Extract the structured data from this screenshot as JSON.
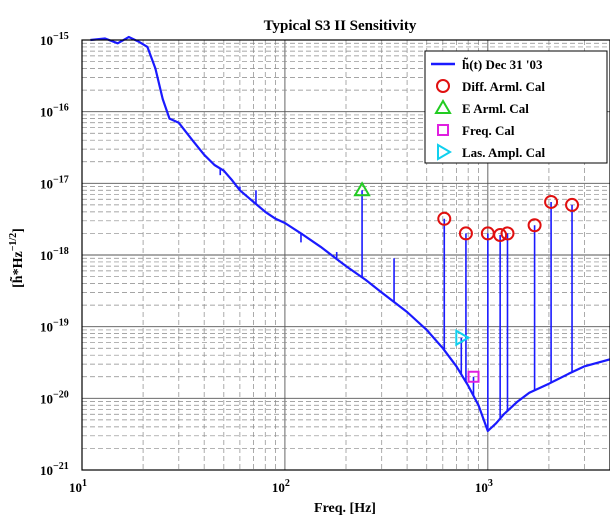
{
  "chart_data": {
    "type": "line",
    "title": "Typical S3 II Sensitivity",
    "xlabel": "Freq. [Hz]",
    "ylabel": "[h̃*Hz^-1/2]",
    "ylabel_parts": {
      "base": "[h̃*Hz",
      "exp": "−1/2",
      "close": "]"
    },
    "x_scale": "log",
    "y_scale": "log",
    "xlim": [
      10,
      4000
    ],
    "ylim": [
      1e-21,
      1e-15
    ],
    "grid": true,
    "legend_position": "top-right",
    "x_ticks": [
      {
        "value": 10,
        "base": "10",
        "exp": "1"
      },
      {
        "value": 100,
        "base": "10",
        "exp": "2"
      },
      {
        "value": 1000,
        "base": "10",
        "exp": "3"
      }
    ],
    "y_ticks": [
      {
        "value": 1e-15,
        "base": "10",
        "exp": "−15"
      },
      {
        "value": 1e-16,
        "base": "10",
        "exp": "−16"
      },
      {
        "value": 1e-17,
        "base": "10",
        "exp": "−17"
      },
      {
        "value": 1e-18,
        "base": "10",
        "exp": "−18"
      },
      {
        "value": 1e-19,
        "base": "10",
        "exp": "−19"
      },
      {
        "value": 1e-20,
        "base": "10",
        "exp": "−20"
      },
      {
        "value": 1e-21,
        "base": "10",
        "exp": "−21"
      }
    ],
    "series": [
      {
        "name": "h̃(t) Dec 31 '03",
        "color": "#1a1aff",
        "style": "line",
        "x": [
          11,
          13,
          15,
          17,
          19,
          21,
          23,
          25,
          27,
          30,
          35,
          40,
          45,
          50,
          55,
          60,
          70,
          80,
          90,
          100,
          120,
          150,
          200,
          250,
          300,
          400,
          500,
          600,
          700,
          800,
          900,
          1000,
          1100,
          1200,
          1400,
          1600,
          2000,
          2500,
          3000,
          4000
        ],
        "y": [
          1e-15,
          1.05e-15,
          9e-16,
          1.1e-15,
          9.5e-16,
          8e-16,
          4e-16,
          1.5e-16,
          8e-17,
          7e-17,
          4e-17,
          2.5e-17,
          1.8e-17,
          1.5e-17,
          1.1e-17,
          8e-18,
          5.5e-18,
          4e-18,
          3.2e-18,
          2.8e-18,
          2e-18,
          1.3e-18,
          7e-19,
          4.5e-19,
          3e-19,
          1.6e-19,
          9e-20,
          5e-20,
          2.8e-20,
          1.5e-20,
          8e-21,
          3.5e-21,
          4.5e-21,
          6e-21,
          9e-21,
          1.2e-20,
          1.6e-20,
          2.2e-20,
          2.8e-20,
          3.5e-20
        ]
      },
      {
        "name": "Diff. Arml. Cal",
        "color": "#e01010",
        "marker": "circle",
        "x": [
          610,
          780,
          1000,
          1150,
          1250,
          1700,
          2050,
          2600
        ],
        "y": [
          3.2e-18,
          2e-18,
          2e-18,
          1.9e-18,
          2e-18,
          2.6e-18,
          5.5e-18,
          5e-18
        ]
      },
      {
        "name": "E Arml. Cal",
        "color": "#22cc22",
        "marker": "triangle-up",
        "x": [
          240
        ],
        "y": [
          8e-18
        ]
      },
      {
        "name": "Freq. Cal",
        "color": "#e020e0",
        "marker": "square",
        "x": [
          850
        ],
        "y": [
          2e-20
        ]
      },
      {
        "name": "Las. Ampl. Cal",
        "color": "#10d0ee",
        "marker": "triangle-right",
        "x": [
          740
        ],
        "y": [
          7e-20
        ]
      }
    ],
    "peaks": [
      {
        "x": 48,
        "y": 1.3e-17
      },
      {
        "x": 60,
        "y": 9e-18
      },
      {
        "x": 72,
        "y": 8e-18
      },
      {
        "x": 120,
        "y": 1.5e-18
      },
      {
        "x": 180,
        "y": 1.1e-18
      },
      {
        "x": 240,
        "y": 8e-18
      },
      {
        "x": 345,
        "y": 9e-19
      },
      {
        "x": 610,
        "y": 3.2e-18
      },
      {
        "x": 740,
        "y": 7e-20
      },
      {
        "x": 780,
        "y": 2e-18
      },
      {
        "x": 850,
        "y": 2e-20
      },
      {
        "x": 1000,
        "y": 2e-18
      },
      {
        "x": 1150,
        "y": 1.9e-18
      },
      {
        "x": 1250,
        "y": 2e-18
      },
      {
        "x": 1700,
        "y": 2.6e-18
      },
      {
        "x": 2050,
        "y": 5.5e-18
      },
      {
        "x": 2600,
        "y": 5e-18
      }
    ]
  }
}
